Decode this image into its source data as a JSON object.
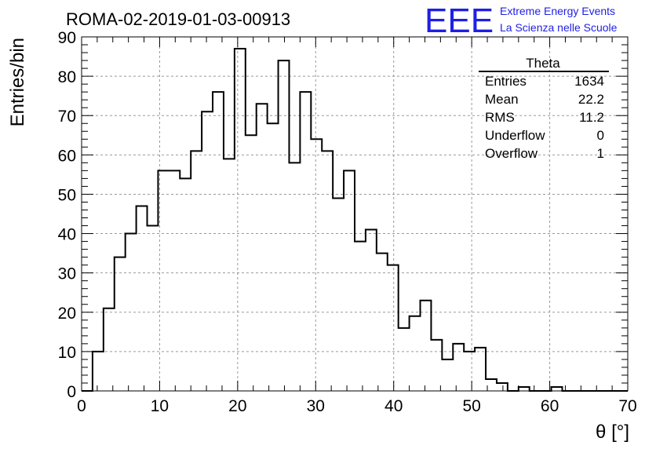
{
  "chart_data": {
    "type": "bar",
    "title": "ROMA-02-2019-01-03-00913",
    "xlabel": "θ [°]",
    "ylabel": "Entries/bin",
    "xlim": [
      0,
      70
    ],
    "ylim": [
      0,
      90
    ],
    "x_ticks": [
      0,
      10,
      20,
      30,
      40,
      50,
      60,
      70
    ],
    "y_ticks": [
      0,
      10,
      20,
      30,
      40,
      50,
      60,
      70,
      80,
      90
    ],
    "grid": true,
    "bin_width": 1.4,
    "bin_start": 0,
    "values": [
      0,
      10,
      21,
      34,
      40,
      47,
      42,
      56,
      56,
      54,
      61,
      71,
      76,
      59,
      87,
      65,
      73,
      68,
      84,
      58,
      76,
      64,
      61,
      49,
      56,
      38,
      41,
      35,
      32,
      16,
      19,
      23,
      13,
      8,
      12,
      10,
      11,
      3,
      2,
      0,
      1,
      0,
      0,
      1,
      0,
      0,
      0,
      0,
      0,
      0
    ],
    "stats": {
      "name": "Theta",
      "rows": [
        {
          "label": "Entries",
          "value": "1634"
        },
        {
          "label": "Mean",
          "value": "22.2"
        },
        {
          "label": "RMS",
          "value": "11.2"
        },
        {
          "label": "Underflow",
          "value": "0"
        },
        {
          "label": "Overflow",
          "value": "1"
        }
      ]
    },
    "logo": {
      "mark": "EEE",
      "line1": "Extreme Energy Events",
      "line2": "La Scienza nelle Scuole"
    },
    "colors": {
      "logo": "#1f1fe6",
      "line": "#000000",
      "grid": "#999999"
    }
  }
}
